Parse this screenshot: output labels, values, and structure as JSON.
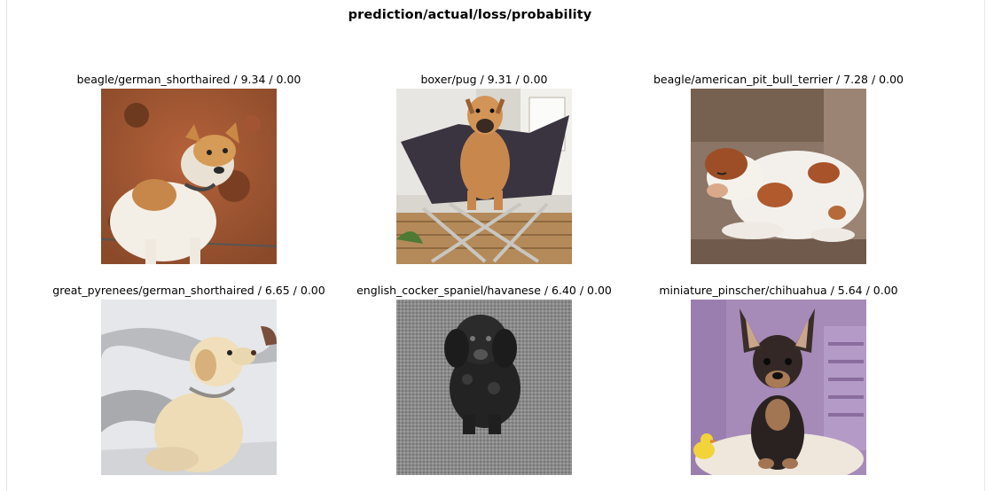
{
  "figure": {
    "title": "prediction/actual/loss/probability",
    "images": [
      {
        "caption": "beagle/german_shorthaired / 9.34 / 0.00",
        "subject": "tan-and-white terrier on red soil",
        "icon": "dog-photo"
      },
      {
        "caption": "boxer/pug / 9.31 / 0.00",
        "subject": "boxer puppy sitting in folding camp chair",
        "icon": "dog-photo"
      },
      {
        "caption": "beagle/american_pit_bull_terrier / 7.28 / 0.00",
        "subject": "white and brown dog lying on couch",
        "icon": "dog-photo"
      },
      {
        "caption": "great_pyrenees/german_shorthaired / 6.65 / 0.00",
        "subject": "cream dog sitting in snow",
        "icon": "dog-photo"
      },
      {
        "caption": "english_cocker_spaniel/havanese / 6.40 / 0.00",
        "subject": "black curly puppy on gray carpet (grayscale)",
        "icon": "dog-photo"
      },
      {
        "caption": "miniature_pinscher/chihuahua / 5.64 / 0.00",
        "subject": "black and tan puppy in purple crate",
        "icon": "dog-photo"
      }
    ]
  }
}
